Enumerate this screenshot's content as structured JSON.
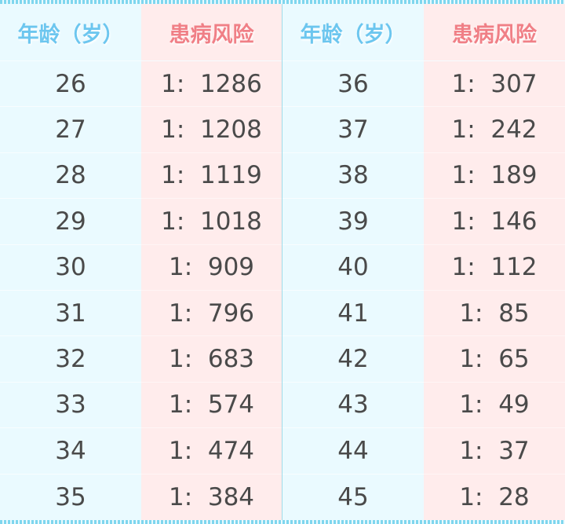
{
  "headers": {
    "age": "年龄（岁）",
    "risk": "患病风险"
  },
  "left": {
    "ages": [
      "26",
      "27",
      "28",
      "29",
      "30",
      "31",
      "32",
      "33",
      "34",
      "35"
    ],
    "risks": [
      "1:  1286",
      "1:  1208",
      "1:  1119",
      "1:  1018",
      "1:  909",
      "1:  796",
      "1:  683",
      "1:  574",
      "1:  474",
      "1:  384"
    ]
  },
  "right": {
    "ages": [
      "36",
      "37",
      "38",
      "39",
      "40",
      "41",
      "42",
      "43",
      "44",
      "45"
    ],
    "risks": [
      "1:  307",
      "1:  242",
      "1:  189",
      "1:  146",
      "1:  112",
      "1:  85",
      "1:  65",
      "1:  49",
      "1:  37",
      "1:  28"
    ]
  },
  "colors": {
    "age_bg": "#eafaff",
    "risk_bg": "#ffecec",
    "age_header": "#6cc6ef",
    "risk_header": "#f07f86"
  }
}
